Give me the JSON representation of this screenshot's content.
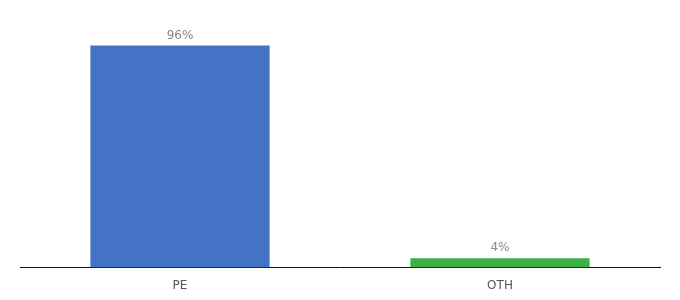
{
  "chart_data": {
    "type": "bar",
    "categories": [
      "PE",
      "OTH"
    ],
    "values": [
      96,
      4
    ],
    "value_labels": [
      "96%",
      "4%"
    ],
    "colors": [
      "#4472c4",
      "#3cb043"
    ],
    "ylim": [
      0,
      107
    ],
    "grid": false,
    "data_labels": true,
    "tick_labels": "x"
  }
}
